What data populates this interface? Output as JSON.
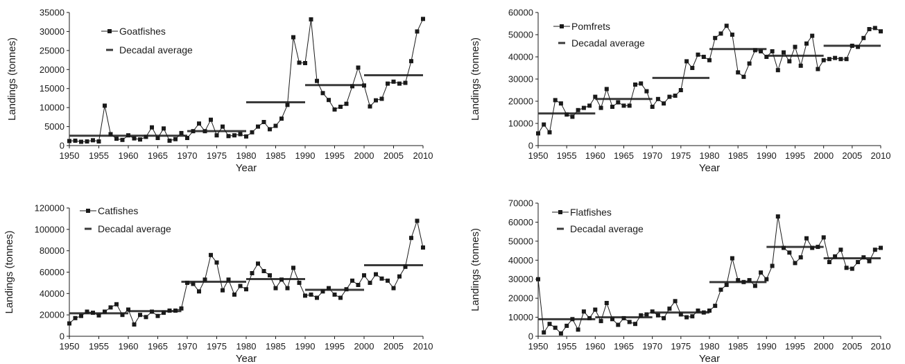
{
  "chart_data": [
    {
      "type": "line",
      "xlabel": "Year",
      "ylabel": "Landings (tonnes)",
      "xlim": [
        1950,
        2010
      ],
      "ylim": [
        0,
        35000
      ],
      "x_ticks": [
        1950,
        1955,
        1960,
        1965,
        1970,
        1975,
        1980,
        1985,
        1990,
        1995,
        2000,
        2005,
        2010
      ],
      "y_ticks": [
        0,
        5000,
        10000,
        15000,
        20000,
        25000,
        30000,
        35000
      ],
      "legend_placement": "top-left",
      "series": [
        {
          "name": "Goatfishes",
          "x": [
            1950,
            1951,
            1952,
            1953,
            1954,
            1955,
            1956,
            1957,
            1958,
            1959,
            1960,
            1961,
            1962,
            1963,
            1964,
            1965,
            1966,
            1967,
            1968,
            1969,
            1970,
            1971,
            1972,
            1973,
            1974,
            1975,
            1976,
            1977,
            1978,
            1979,
            1980,
            1981,
            1982,
            1983,
            1984,
            1985,
            1986,
            1987,
            1988,
            1989,
            1990,
            1991,
            1992,
            1993,
            1994,
            1995,
            1996,
            1997,
            1998,
            1999,
            2000,
            2001,
            2002,
            2003,
            2004,
            2005,
            2006,
            2007,
            2008,
            2009,
            2010
          ],
          "values": [
            1200,
            1300,
            1000,
            1100,
            1400,
            1100,
            10500,
            3000,
            1800,
            1500,
            2700,
            1900,
            1600,
            2300,
            4800,
            2000,
            4500,
            1300,
            1700,
            3300,
            2000,
            3800,
            5800,
            3800,
            6800,
            2700,
            5000,
            2500,
            2700,
            3000,
            2400,
            3500,
            5000,
            6200,
            4300,
            5200,
            7100,
            10700,
            28500,
            21800,
            21700,
            33200,
            17000,
            13800,
            12000,
            9500,
            10200,
            11000,
            15600,
            20500,
            15800,
            10300,
            11900,
            12300,
            16300,
            16800,
            16300,
            16500,
            22200,
            30000,
            33300
          ]
        },
        {
          "name": "Decadal average",
          "segments": [
            {
              "x": [
                1950,
                1960
              ],
              "value": 2600
            },
            {
              "x": [
                1960,
                1970
              ],
              "value": 2600
            },
            {
              "x": [
                1970,
                1980
              ],
              "value": 3800
            },
            {
              "x": [
                1980,
                1990
              ],
              "value": 11400
            },
            {
              "x": [
                1990,
                2000
              ],
              "value": 15900
            },
            {
              "x": [
                2000,
                2010
              ],
              "value": 18500
            }
          ]
        }
      ]
    },
    {
      "type": "line",
      "xlabel": "Year",
      "ylabel": "Landings (tonnes)",
      "xlim": [
        1950,
        2010
      ],
      "ylim": [
        0,
        60000
      ],
      "x_ticks": [
        1950,
        1955,
        1960,
        1965,
        1970,
        1975,
        1980,
        1985,
        1990,
        1995,
        2000,
        2005,
        2010
      ],
      "y_ticks": [
        0,
        10000,
        20000,
        30000,
        40000,
        50000,
        60000
      ],
      "legend_placement": "top-left",
      "series": [
        {
          "name": "Pomfrets",
          "x": [
            1950,
            1951,
            1952,
            1953,
            1954,
            1955,
            1956,
            1957,
            1958,
            1959,
            1960,
            1961,
            1962,
            1963,
            1964,
            1965,
            1966,
            1967,
            1968,
            1969,
            1970,
            1971,
            1972,
            1973,
            1974,
            1975,
            1976,
            1977,
            1978,
            1979,
            1980,
            1981,
            1982,
            1983,
            1984,
            1985,
            1986,
            1987,
            1988,
            1989,
            1990,
            1991,
            1992,
            1993,
            1994,
            1995,
            1996,
            1997,
            1998,
            1999,
            2000,
            2001,
            2002,
            2003,
            2004,
            2005,
            2006,
            2007,
            2008,
            2009,
            2010
          ],
          "values": [
            5500,
            9500,
            6000,
            20500,
            19000,
            14000,
            13000,
            16000,
            17000,
            18000,
            22000,
            17000,
            25500,
            17500,
            19500,
            18000,
            18000,
            27500,
            28000,
            24500,
            17500,
            21000,
            19000,
            22000,
            22500,
            25000,
            38000,
            35000,
            41000,
            40000,
            38500,
            48500,
            50500,
            54000,
            50000,
            33000,
            31000,
            37000,
            43000,
            42500,
            40000,
            42500,
            34000,
            42000,
            38000,
            44500,
            36000,
            46000,
            49500,
            34500,
            38500,
            39000,
            39500,
            39000,
            39000,
            45000,
            44500,
            48500,
            52500,
            53000,
            51500
          ]
        },
        {
          "name": "Decadal average",
          "segments": [
            {
              "x": [
                1950,
                1960
              ],
              "value": 14500
            },
            {
              "x": [
                1960,
                1970
              ],
              "value": 21000
            },
            {
              "x": [
                1970,
                1980
              ],
              "value": 30500
            },
            {
              "x": [
                1980,
                1990
              ],
              "value": 43500
            },
            {
              "x": [
                1990,
                2000
              ],
              "value": 40500
            },
            {
              "x": [
                2000,
                2010
              ],
              "value": 45000
            }
          ]
        }
      ]
    },
    {
      "type": "line",
      "xlabel": "Year",
      "ylabel": "Landings (tonnes)",
      "xlim": [
        1950,
        2010
      ],
      "ylim": [
        0,
        120000
      ],
      "x_ticks": [
        1950,
        1955,
        1960,
        1965,
        1970,
        1975,
        1980,
        1985,
        1990,
        1995,
        2000,
        2005,
        2010
      ],
      "y_ticks": [
        0,
        20000,
        40000,
        60000,
        80000,
        100000,
        120000
      ],
      "legend_placement": "top-left",
      "series": [
        {
          "name": "Catfishes",
          "x": [
            1950,
            1951,
            1952,
            1953,
            1954,
            1955,
            1956,
            1957,
            1958,
            1959,
            1960,
            1961,
            1962,
            1963,
            1964,
            1965,
            1966,
            1967,
            1968,
            1969,
            1970,
            1971,
            1972,
            1973,
            1974,
            1975,
            1976,
            1977,
            1978,
            1979,
            1980,
            1981,
            1982,
            1983,
            1984,
            1985,
            1986,
            1987,
            1988,
            1989,
            1990,
            1991,
            1992,
            1993,
            1994,
            1995,
            1996,
            1997,
            1998,
            1999,
            2000,
            2001,
            2002,
            2003,
            2004,
            2005,
            2006,
            2007,
            2008,
            2009,
            2010
          ],
          "values": [
            12000,
            17000,
            19000,
            23000,
            22000,
            19500,
            23000,
            27000,
            30000,
            20000,
            25000,
            11000,
            20000,
            18000,
            23000,
            19000,
            22000,
            24000,
            24000,
            26000,
            50000,
            49000,
            42000,
            53000,
            76000,
            69000,
            43000,
            53000,
            39000,
            47000,
            44000,
            59000,
            68000,
            61000,
            57000,
            45000,
            53000,
            45000,
            64000,
            50000,
            38000,
            39000,
            36000,
            42000,
            45000,
            39000,
            36000,
            44000,
            52000,
            48000,
            57000,
            50000,
            58000,
            54000,
            52000,
            45000,
            56000,
            65000,
            92000,
            108000,
            83000
          ]
        },
        {
          "name": "Decadal average",
          "segments": [
            {
              "x": [
                1950,
                1960
              ],
              "value": 21500
            },
            {
              "x": [
                1960,
                1969
              ],
              "value": 23500
            },
            {
              "x": [
                1969,
                1980
              ],
              "value": 51000
            },
            {
              "x": [
                1980,
                1990
              ],
              "value": 53500
            },
            {
              "x": [
                1990,
                2000
              ],
              "value": 43500
            },
            {
              "x": [
                2000,
                2010
              ],
              "value": 66500
            }
          ]
        }
      ]
    },
    {
      "type": "line",
      "xlabel": "Year",
      "ylabel": "Landings (tonnes)",
      "xlim": [
        1950,
        2010
      ],
      "ylim": [
        0,
        70000
      ],
      "x_ticks": [
        1950,
        1955,
        1960,
        1965,
        1970,
        1975,
        1980,
        1985,
        1990,
        1995,
        2000,
        2005,
        2010
      ],
      "y_ticks": [
        0,
        10000,
        20000,
        30000,
        40000,
        50000,
        60000,
        70000
      ],
      "legend_placement": "top-left",
      "series": [
        {
          "name": "Flatfishes",
          "x": [
            1950,
            1951,
            1952,
            1953,
            1954,
            1955,
            1956,
            1957,
            1958,
            1959,
            1960,
            1961,
            1962,
            1963,
            1964,
            1965,
            1966,
            1967,
            1968,
            1969,
            1970,
            1971,
            1972,
            1973,
            1974,
            1975,
            1976,
            1977,
            1978,
            1979,
            1980,
            1981,
            1982,
            1983,
            1984,
            1985,
            1986,
            1987,
            1988,
            1989,
            1990,
            1991,
            1992,
            1993,
            1994,
            1995,
            1996,
            1997,
            1998,
            1999,
            2000,
            2001,
            2002,
            2003,
            2004,
            2005,
            2006,
            2007,
            2008,
            2009,
            2010
          ],
          "values": [
            30000,
            2000,
            6500,
            4500,
            1500,
            5500,
            9000,
            3500,
            13000,
            9500,
            14000,
            8000,
            17500,
            9000,
            6000,
            9500,
            7500,
            6500,
            11000,
            11500,
            13000,
            11000,
            9500,
            14500,
            18500,
            11500,
            10000,
            10500,
            13500,
            12500,
            13500,
            16000,
            24500,
            27000,
            41000,
            29500,
            28500,
            29500,
            26500,
            33500,
            30000,
            37000,
            63000,
            46500,
            44000,
            38500,
            41500,
            51500,
            46500,
            47000,
            52000,
            39000,
            42000,
            45500,
            36000,
            35500,
            39000,
            41500,
            39500,
            45500,
            46500
          ]
        },
        {
          "name": "Decadal average",
          "segments": [
            {
              "x": [
                1950,
                1960
              ],
              "value": 9000
            },
            {
              "x": [
                1960,
                1970
              ],
              "value": 10000
            },
            {
              "x": [
                1970,
                1980
              ],
              "value": 12500
            },
            {
              "x": [
                1980,
                1990
              ],
              "value": 28500
            },
            {
              "x": [
                1990,
                2000
              ],
              "value": 47000
            },
            {
              "x": [
                2000,
                2010
              ],
              "value": 41000
            }
          ]
        }
      ]
    }
  ],
  "colors": {
    "line": "#1a1a1a",
    "marker": "#1a1a1a",
    "average": "#3a3a3a",
    "axis": "#1a1a1a",
    "background": "#ffffff"
  }
}
